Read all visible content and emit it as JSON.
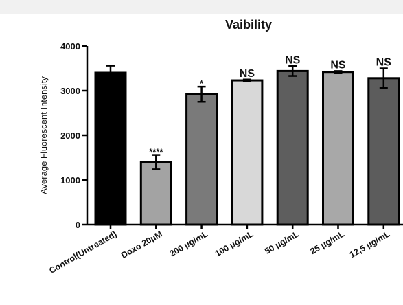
{
  "chart_data": {
    "type": "bar",
    "title": "Vaibility",
    "xlabel": "",
    "ylabel": "Average Fluorescent Intensity",
    "ylim": [
      0,
      4000
    ],
    "yticks": [
      0,
      1000,
      2000,
      3000,
      4000
    ],
    "grid": false,
    "legend": "none",
    "categories": [
      "Control(Untreated)",
      "Doxo 20μM",
      "200 μg/mL",
      "100 μg/mL",
      "50 μg/mL",
      "25 μg/mL",
      "12,5 μg/mL"
    ],
    "values": [
      3400,
      1400,
      2920,
      3230,
      3440,
      3420,
      3280
    ],
    "errors": [
      160,
      160,
      170,
      20,
      110,
      20,
      220
    ],
    "annotations": [
      "",
      "****",
      "*",
      "NS",
      "NS",
      "NS",
      "NS"
    ],
    "colors": [
      "#000000",
      "#a3a3a3",
      "#7a7a7a",
      "#d8d8d8",
      "#5e5e5e",
      "#a8a8a8",
      "#5c5c5c"
    ]
  }
}
